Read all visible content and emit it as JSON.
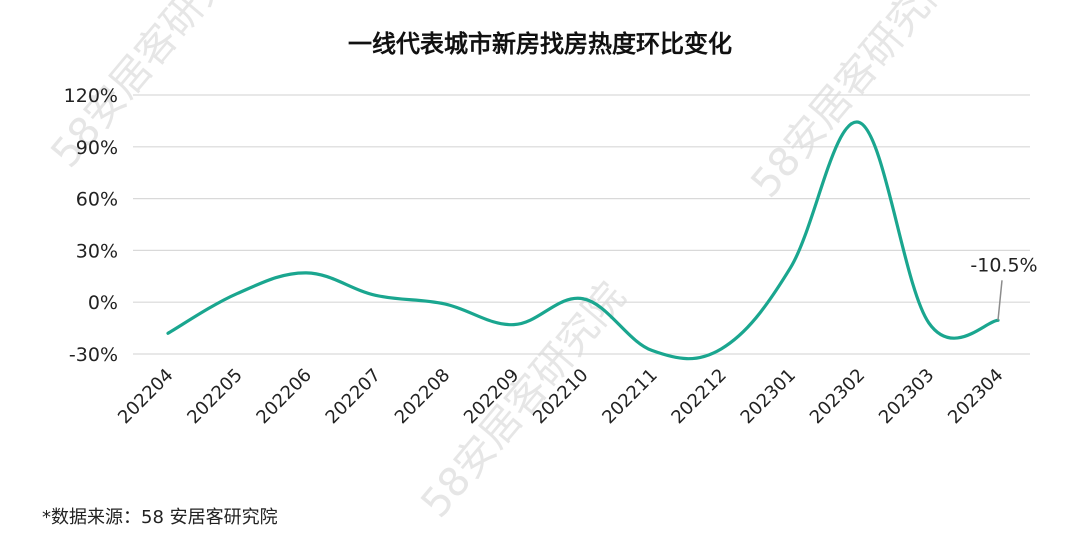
{
  "chart_data": {
    "type": "line",
    "title": "一线代表城市新房找房热度环比变化",
    "xlabel": "",
    "ylabel": "",
    "categories": [
      "202204",
      "202205",
      "202206",
      "202207",
      "202208",
      "202209",
      "202210",
      "202211",
      "202212",
      "202301",
      "202302",
      "202303",
      "202304"
    ],
    "series": [
      {
        "values": [
          -18,
          5,
          17,
          4,
          -1,
          -13,
          2,
          -28,
          -27,
          20,
          104,
          -12,
          -10.5
        ]
      }
    ],
    "y_ticks": [
      "120%",
      "90%",
      "60%",
      "30%",
      "0%",
      "-30%"
    ],
    "ylim": [
      -30,
      120
    ],
    "grid": "horizontal",
    "legend": "none",
    "annotation": {
      "category": "202304",
      "text": "-10.5%"
    },
    "line_color": "#1aa68f",
    "source_note": "*数据来源：58 安居客研究院",
    "watermark_text": "58安居客研究院"
  }
}
